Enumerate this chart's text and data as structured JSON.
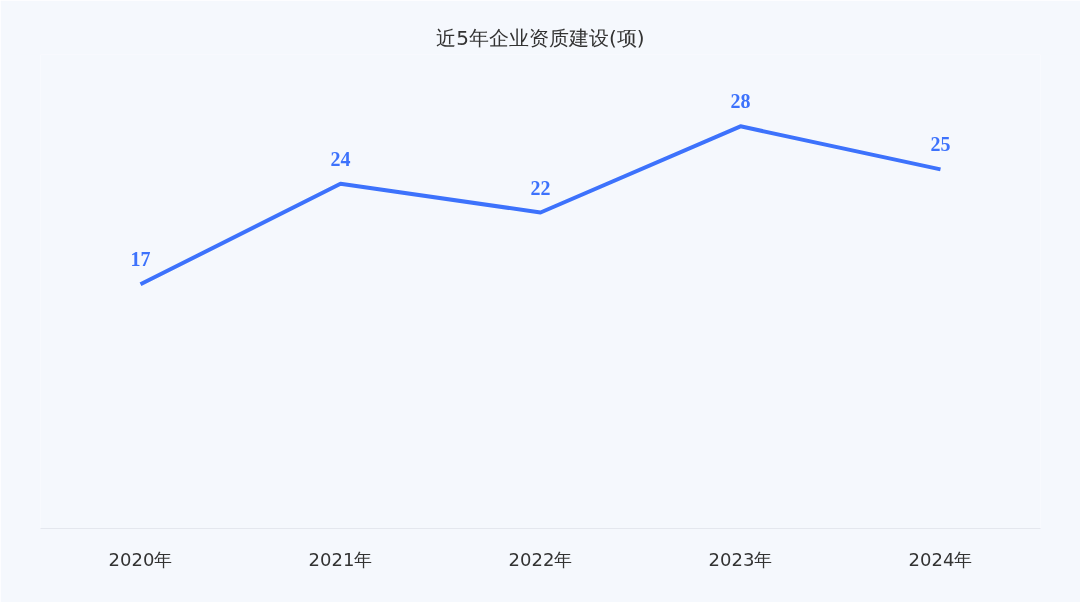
{
  "chart_data": {
    "type": "line",
    "title": "近5年企业资质建设(项)",
    "categories": [
      "2020年",
      "2021年",
      "2022年",
      "2023年",
      "2024年"
    ],
    "series": [
      {
        "color": "#3d72fc",
        "values": [
          17,
          24,
          22,
          28,
          25
        ]
      }
    ],
    "ylim": [
      0,
      33
    ],
    "data_labels": true,
    "grid": false,
    "marker": "none",
    "line_style": "solid"
  }
}
